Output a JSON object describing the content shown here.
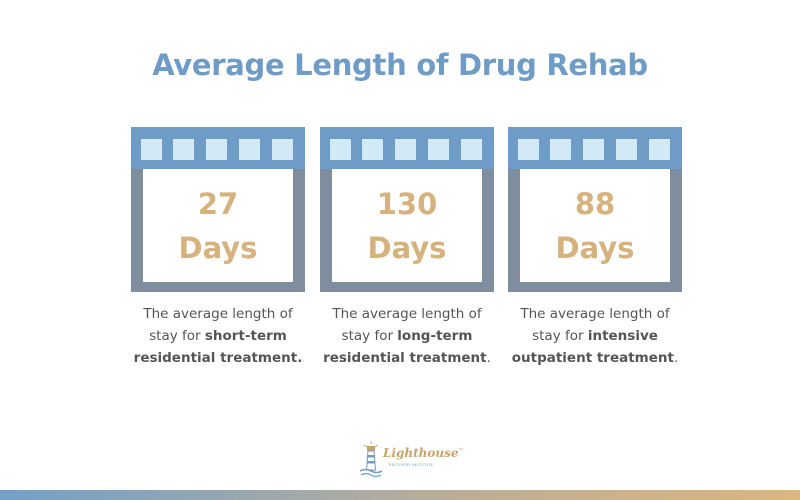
{
  "title": "Average Length of Drug Rehab",
  "cards": [
    {
      "number": "27",
      "unit": "Days",
      "description": {
        "line1": "The average length of",
        "pre": "stay for ",
        "bold": "short-term residential treatment.",
        "post": ""
      }
    },
    {
      "number": "130",
      "unit": "Days",
      "description": {
        "line1": "The average length of",
        "pre": "stay for ",
        "bold": "long-term residential treatment",
        "post": "."
      }
    },
    {
      "number": "88",
      "unit": "Days",
      "description": {
        "line1": "The average length of",
        "pre": "stay for ",
        "bold": "intensive outpatient treatment",
        "post": "."
      }
    }
  ],
  "logo": {
    "brand": "Lighthouse",
    "trademark": "™",
    "subtitle": "RECOVERY INSTITUTE",
    "icon": "lighthouse-icon"
  },
  "colors": {
    "title": "#6f9cc7",
    "header": "#6f9cc7",
    "header_squares": "#d3eaf6",
    "frame": "#7e8e9e",
    "number": "#d6b27e",
    "text": "#555555"
  }
}
